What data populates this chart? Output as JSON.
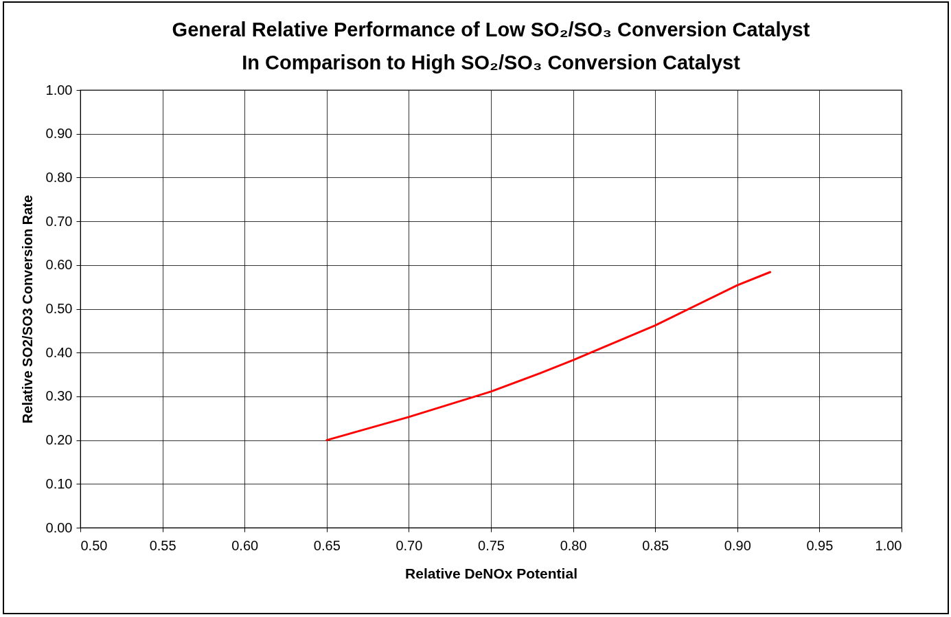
{
  "chart_data": {
    "type": "line",
    "title": "General Relative Performance of Low SO₂/SO₃ Conversion Catalyst\nIn Comparison to High SO₂/SO₃ Conversion Catalyst",
    "xlabel": "Relative DeNOx Potential",
    "ylabel": "Relative SO2/SO3 Conversion Rate",
    "x": [
      0.65,
      0.7,
      0.75,
      0.78,
      0.8,
      0.85,
      0.9,
      0.92
    ],
    "series": [
      {
        "color": "#ff0000",
        "values": [
          0.2,
          0.253,
          0.311,
          0.353,
          0.383,
          0.462,
          0.554,
          0.584
        ]
      }
    ],
    "xlim": [
      0.5,
      1.0
    ],
    "xticks": [
      {
        "value": 0.5,
        "label": "0.50"
      },
      {
        "value": 0.55,
        "label": "0.55"
      },
      {
        "value": 0.6,
        "label": "0.60"
      },
      {
        "value": 0.65,
        "label": "0.65"
      },
      {
        "value": 0.7,
        "label": "0.70"
      },
      {
        "value": 0.75,
        "label": "0.75"
      },
      {
        "value": 0.8,
        "label": "0.80"
      },
      {
        "value": 0.85,
        "label": "0.85"
      },
      {
        "value": 0.9,
        "label": "0.90"
      },
      {
        "value": 0.95,
        "label": "0.95"
      },
      {
        "value": 1.0,
        "label": "1.00"
      }
    ],
    "ylim": [
      0,
      1
    ],
    "yticks": [
      {
        "value": 0,
        "label": "0.00"
      },
      {
        "value": 0.1,
        "label": "0.10"
      },
      {
        "value": 0.2,
        "label": "0.20"
      },
      {
        "value": 0.3,
        "label": "0.30"
      },
      {
        "value": 0.4,
        "label": "0.40"
      },
      {
        "value": 0.5,
        "label": "0.50"
      },
      {
        "value": 0.6,
        "label": "0.60"
      },
      {
        "value": 0.7,
        "label": "0.70"
      },
      {
        "value": 0.8,
        "label": "0.80"
      },
      {
        "value": 0.9,
        "label": "0.90"
      },
      {
        "value": 1.0,
        "label": "1.00"
      }
    ],
    "grid": true,
    "marker": "none",
    "line_style": "solid"
  }
}
